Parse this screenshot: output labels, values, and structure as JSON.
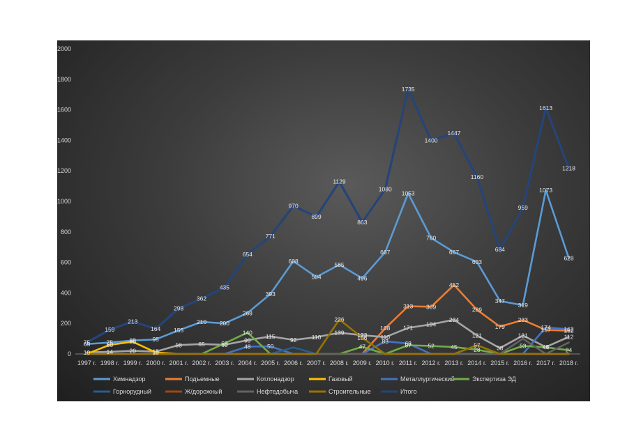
{
  "chart_data": {
    "type": "line",
    "title": "",
    "xlabel": "",
    "ylabel": "",
    "ylim": [
      0,
      2000
    ],
    "yticks": [
      0,
      200,
      400,
      600,
      800,
      1000,
      1200,
      1400,
      1600,
      1800,
      2000
    ],
    "grid": false,
    "legend_position": "bottom",
    "categories": [
      "1997 г.",
      "1998 г.",
      "1999 г.",
      "2000 г.",
      "2001 г.",
      "2002 г.",
      "2003 г.",
      "2004 г.",
      "2005 г.",
      "2006 г.",
      "2007 г.",
      "2008 г.",
      "2009 г.",
      "2010 г.",
      "2011 г.",
      "2012 г.",
      "2013 г.",
      "2014 г.",
      "2015 г.",
      "2016 г.",
      "2017 г.",
      "2018 г."
    ],
    "series": [
      {
        "name": "Химнадзор",
        "color": "#5b9bd5",
        "values": [
          65,
          75,
          88,
          95,
          155,
          210,
          200,
          268,
          393,
          608,
          504,
          585,
          496,
          667,
          1053,
          760,
          667,
          603,
          347,
          319,
          1073,
          628
        ]
      },
      {
        "name": "Подъемные",
        "color": "#ed7d31",
        "values": [
          0,
          0,
          0,
          0,
          0,
          0,
          0,
          0,
          0,
          0,
          0,
          0,
          0,
          168,
          313,
          309,
          452,
          289,
          179,
          223,
          157,
          152
        ]
      },
      {
        "name": "Котлонадзор",
        "color": "#a5a5a5",
        "values": [
          10,
          14,
          20,
          15,
          58,
          65,
          60,
          90,
          115,
          92,
          110,
          139,
          123,
          110,
          171,
          194,
          224,
          121,
          38,
          121,
          45,
          112
        ]
      },
      {
        "name": "Газовый",
        "color": "#ffc000",
        "values": [
          0,
          60,
          80,
          10,
          0,
          0,
          0,
          0,
          0,
          0,
          0,
          0,
          0,
          0,
          0,
          0,
          0,
          0,
          0,
          0,
          0,
          0
        ]
      },
      {
        "name": "Металлургический",
        "color": "#4472c4",
        "values": [
          0,
          0,
          0,
          0,
          0,
          0,
          0,
          48,
          50,
          0,
          0,
          0,
          0,
          83,
          68,
          0,
          0,
          0,
          0,
          0,
          174,
          162
        ]
      },
      {
        "name": "Экспертиза ЭД",
        "color": "#70ad47",
        "values": [
          0,
          0,
          0,
          0,
          0,
          0,
          69,
          140,
          0,
          0,
          0,
          0,
          47,
          0,
          57,
          52,
          45,
          28,
          0,
          53,
          44,
          24
        ]
      },
      {
        "name": "Горнорудный",
        "color": "#255e91",
        "values": [
          0,
          0,
          0,
          0,
          0,
          0,
          0,
          0,
          0,
          43,
          0,
          0,
          0,
          0,
          0,
          0,
          0,
          0,
          0,
          0,
          0,
          0
        ]
      },
      {
        "name": "Ж/дорожный",
        "color": "#9e480e",
        "values": [
          0,
          0,
          0,
          0,
          0,
          0,
          0,
          0,
          0,
          0,
          0,
          0,
          0,
          0,
          0,
          0,
          0,
          0,
          0,
          0,
          0,
          0
        ]
      },
      {
        "name": "Нефтедобыча",
        "color": "#636363",
        "values": [
          0,
          0,
          0,
          0,
          0,
          0,
          0,
          0,
          0,
          0,
          0,
          0,
          0,
          0,
          0,
          0,
          0,
          0,
          0,
          100,
          0,
          75
        ]
      },
      {
        "name": "Строительные",
        "color": "#997300",
        "values": [
          0,
          0,
          0,
          0,
          0,
          0,
          0,
          0,
          0,
          0,
          0,
          226,
          106,
          0,
          0,
          0,
          0,
          57,
          0,
          0,
          0,
          0
        ]
      },
      {
        "name": "Итого",
        "color": "#264478",
        "values": [
          75,
          159,
          213,
          164,
          298,
          362,
          435,
          654,
          771,
          970,
          899,
          1129,
          863,
          1080,
          1735,
          1400,
          1447,
          1160,
          684,
          959,
          1613,
          1218
        ]
      }
    ],
    "labelled_series": [
      "Химнадзор",
      "Подъемные",
      "Котлонадзор",
      "Газовый",
      "Металлургический",
      "Экспертиза ЭД",
      "Строительные",
      "Итого"
    ]
  }
}
